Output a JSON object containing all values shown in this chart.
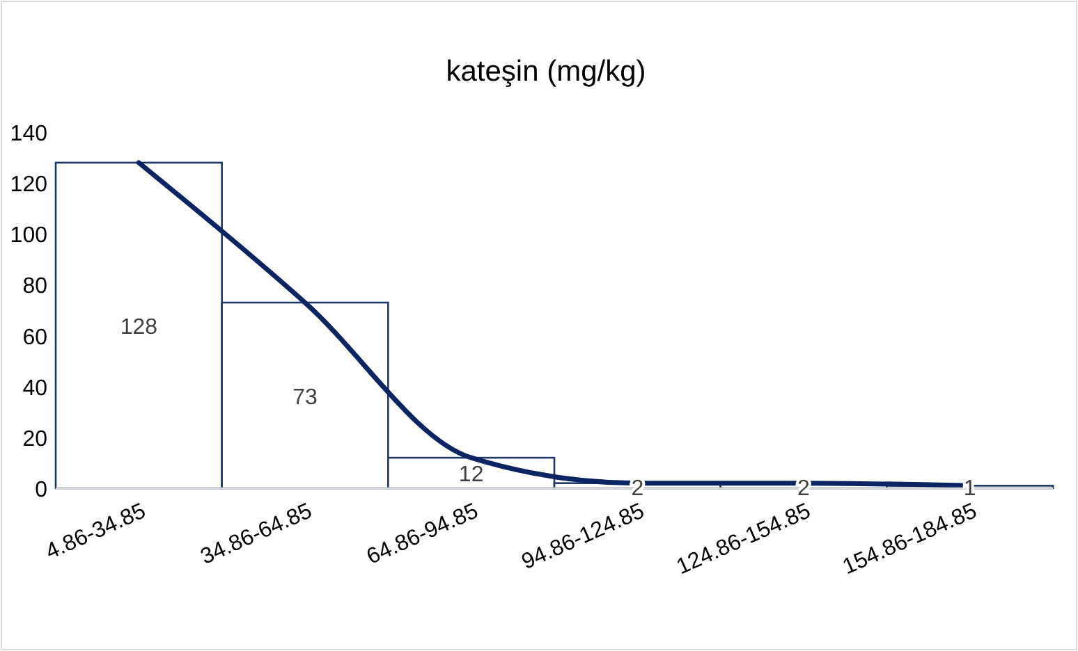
{
  "chart_data": {
    "type": "bar",
    "title": "kateşin (mg/kg)",
    "categories": [
      "4.86-34.85",
      "34.86-64.85",
      "64.86-94.85",
      "94.86-124.85",
      "124.86-154.85",
      "154.86-184.85"
    ],
    "series": [
      {
        "color": "#1f3864",
        "values": [
          128,
          73,
          12,
          2,
          2,
          1
        ],
        "value_labels": [
          "128",
          "73",
          "12",
          "2",
          "2",
          "1"
        ]
      },
      {
        "type": "line",
        "color": "#0d2463",
        "values": [
          128,
          73,
          12,
          2,
          2,
          1
        ]
      }
    ],
    "ylim": [
      0,
      140
    ],
    "yticks": [
      0,
      20,
      40,
      60,
      80,
      100,
      120,
      140
    ],
    "grid": false
  }
}
